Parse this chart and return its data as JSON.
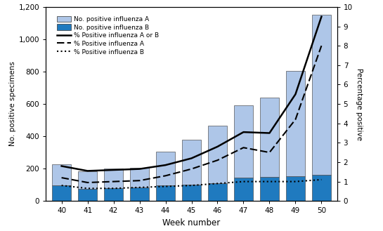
{
  "weeks": [
    40,
    41,
    42,
    43,
    44,
    45,
    46,
    47,
    48,
    49,
    50
  ],
  "influenza_A": [
    130,
    110,
    120,
    120,
    210,
    280,
    355,
    445,
    490,
    650,
    990
  ],
  "influenza_B": [
    95,
    75,
    80,
    85,
    95,
    100,
    110,
    145,
    150,
    155,
    160
  ],
  "pct_A_or_B": [
    1.8,
    1.55,
    1.6,
    1.65,
    1.85,
    2.2,
    2.8,
    3.55,
    3.5,
    5.5,
    9.5
  ],
  "pct_A": [
    1.2,
    0.95,
    1.0,
    1.05,
    1.3,
    1.65,
    2.1,
    2.75,
    2.5,
    4.2,
    8.0
  ],
  "pct_B": [
    0.8,
    0.65,
    0.65,
    0.7,
    0.75,
    0.8,
    0.9,
    1.0,
    1.0,
    1.0,
    1.1
  ],
  "color_A": "#aec6e8",
  "color_B": "#1f7abf",
  "ylim_left": [
    0,
    1200
  ],
  "ylim_right": [
    0,
    10
  ],
  "yticks_left": [
    0,
    200,
    400,
    600,
    800,
    1000,
    1200
  ],
  "yticks_right": [
    0,
    1,
    2,
    3,
    4,
    5,
    6,
    7,
    8,
    9,
    10
  ],
  "xlabel": "Week number",
  "ylabel_left": "No. positive specimens",
  "ylabel_right": "Percentage positive",
  "legend_labels": [
    "No. positive influenza A",
    "No. positive influenza B",
    "% Positive influenza A or B",
    "% Positive influenza A",
    "% Positive influenza B"
  ]
}
